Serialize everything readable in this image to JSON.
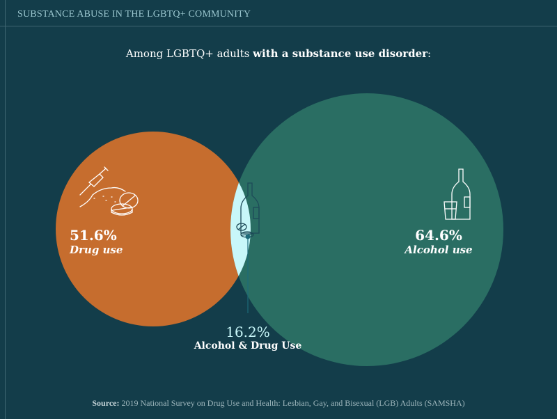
{
  "header": {
    "title": "SUBSTANCE ABUSE IN THE LGBTQ+ COMMUNITY"
  },
  "subtitle": {
    "prefix": "Among LGBTQ+ adults ",
    "bold": "with a substance use disorder",
    "suffix": ":"
  },
  "chart_data": {
    "type": "venn",
    "sets": [
      {
        "name": "Drug use",
        "value_label": "51.6%",
        "value": 51.6,
        "color": "#c66d2e",
        "icon": "syringe-pills-icon"
      },
      {
        "name": "Alcohol use",
        "value_label": "64.6%",
        "value": 64.6,
        "color": "#2a6e63",
        "icon": "bottle-glass-icon"
      }
    ],
    "intersection": {
      "name": "Alcohol & Drug Use",
      "value_label": "16.2%",
      "value": 16.2,
      "color": "#c8f7f9",
      "icon": "bottle-pills-icon"
    }
  },
  "source": {
    "label": "Source:",
    "text": " 2019 National Survey on Drug Use and Health: Lesbian, Gay, and Bisexual (LGB) Adults (SAMSHA)"
  }
}
